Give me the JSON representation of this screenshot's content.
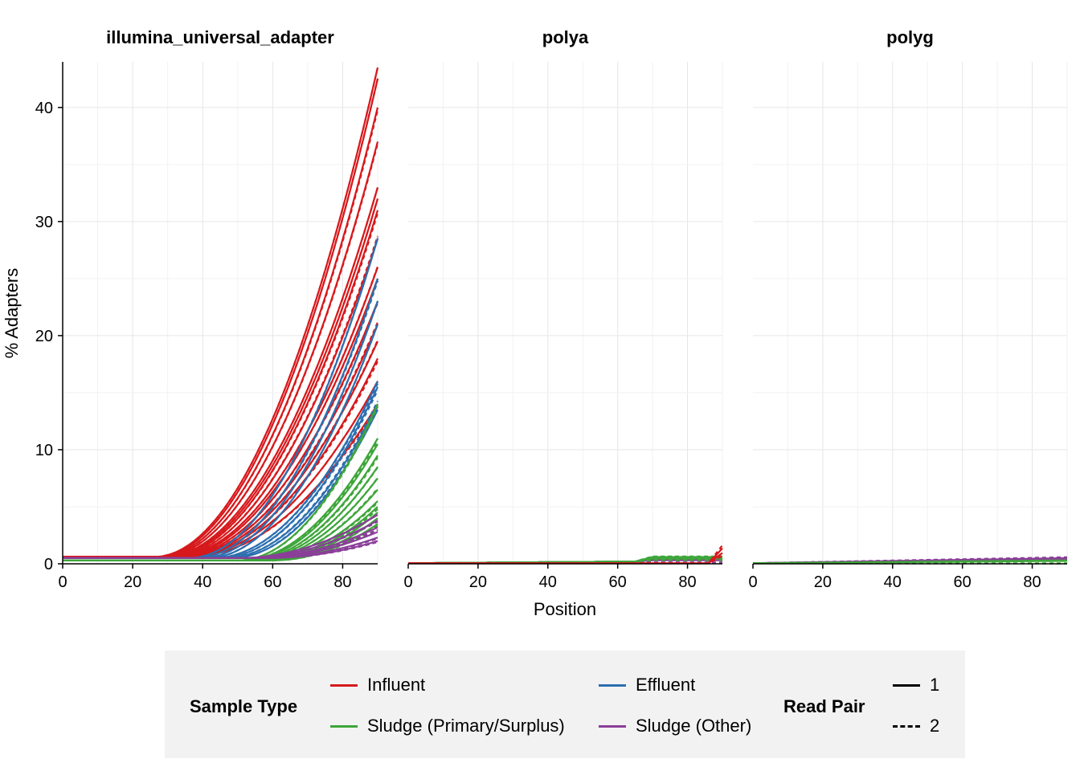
{
  "chart_data": {
    "type": "line",
    "ylabel": "% Adapters",
    "xlabel": "Position",
    "xlim": [
      0,
      90
    ],
    "ylim": [
      0,
      44
    ],
    "x_ticks": [
      0,
      20,
      40,
      60,
      80
    ],
    "y_ticks": [
      0,
      10,
      20,
      30,
      40
    ],
    "grid": true,
    "legend_position": "bottom",
    "legend": {
      "sample_type_title": "Sample Type",
      "read_pair_title": "Read Pair",
      "sample_types": [
        {
          "label": "Influent",
          "color": "#d7191c"
        },
        {
          "label": "Effluent",
          "color": "#2c6fb0"
        },
        {
          "label": "Sludge (Primary/Surplus)",
          "color": "#3ea63a"
        },
        {
          "label": "Sludge (Other)",
          "color": "#8a3f98"
        }
      ],
      "read_pairs": [
        {
          "label": "1",
          "dash": "solid"
        },
        {
          "label": "2",
          "dash": "dashed"
        }
      ]
    },
    "panels": [
      {
        "title": "illumina_universal_adapter",
        "series_groups": [
          {
            "sample_type": "Influent",
            "base": 0.6,
            "onset_range": [
              26,
              36
            ],
            "end_values": [
              43.5,
              42.5,
              40,
              37,
              33,
              32,
              31,
              28.5,
              26,
              25,
              23,
              21,
              19.5,
              18,
              16,
              14
            ]
          },
          {
            "sample_type": "Effluent",
            "base": 0.5,
            "onset_range": [
              36,
              48
            ],
            "end_values": [
              28.5,
              25,
              23,
              21,
              16,
              15.5,
              14,
              13.5
            ]
          },
          {
            "sample_type": "Sludge (Primary/Surplus)",
            "base": 0.3,
            "onset_range": [
              50,
              60
            ],
            "end_values": [
              14,
              11,
              10.5,
              9.5,
              8.5,
              7.5,
              6.5,
              5.5,
              5,
              4.5,
              4,
              3.5
            ]
          },
          {
            "sample_type": "Sludge (Other)",
            "base": 0.5,
            "onset_range": [
              50,
              58
            ],
            "end_values": [
              4.3,
              3.8,
              3.2,
              2.8,
              2.3,
              2
            ]
          }
        ]
      },
      {
        "title": "polya",
        "series_groups": [
          {
            "sample_type": "Sludge (Other)",
            "base": 0.05,
            "end_values": [
              0.4,
              0.35,
              0.3
            ]
          },
          {
            "sample_type": "Sludge (Primary/Surplus)",
            "base": 0.05,
            "end_values": [
              0.6,
              0.5,
              0.45
            ]
          },
          {
            "sample_type": "Influent",
            "base": 0.05,
            "end_values": [
              1.3,
              0.9
            ]
          }
        ]
      },
      {
        "title": "polyg",
        "series_groups": [
          {
            "sample_type": "Sludge (Other)",
            "base": 0.05,
            "end_values": [
              0.5,
              0.45,
              0.4,
              0.35
            ]
          },
          {
            "sample_type": "Sludge (Primary/Surplus)",
            "base": 0.05,
            "end_values": [
              0.3,
              0.25
            ]
          }
        ]
      }
    ]
  }
}
